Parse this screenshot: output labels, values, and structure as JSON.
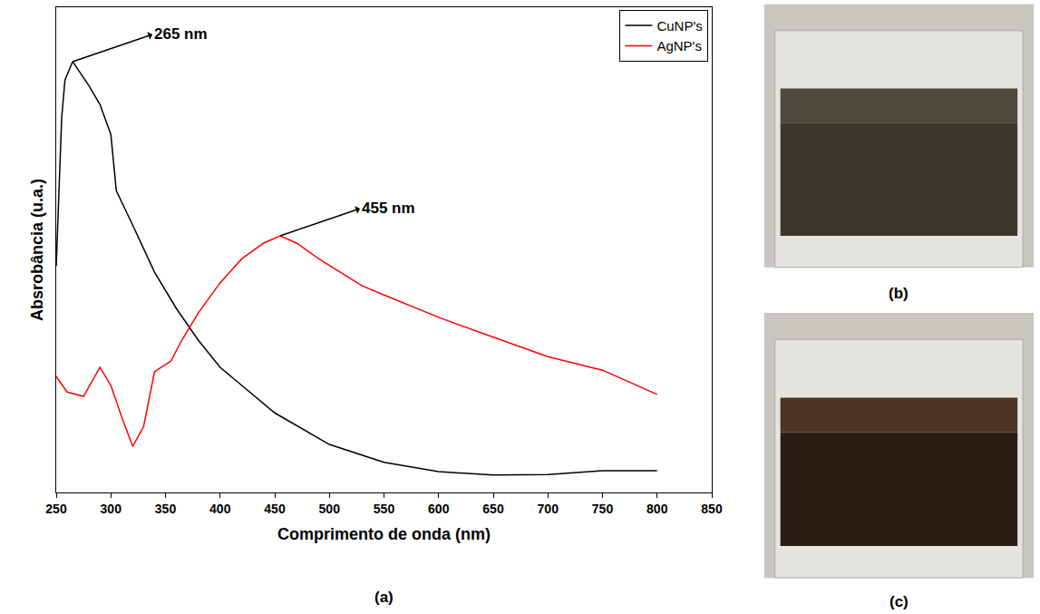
{
  "chart_data": {
    "type": "line",
    "label": "(a)",
    "x_label": "Comprimento de onda (nm)",
    "y_label": "Absrobância (u.a.)",
    "xlim": [
      250,
      850
    ],
    "xticks": [
      250,
      300,
      350,
      400,
      450,
      500,
      550,
      600,
      650,
      700,
      750,
      800,
      850
    ],
    "ylim": [
      0,
      1
    ],
    "tick_labels": "x",
    "grid": false,
    "legend": "top-right",
    "series": [
      {
        "name": "CuNP's",
        "color": "#000000",
        "x": [
          250,
          255,
          258,
          265,
          280,
          290,
          300,
          305,
          320,
          340,
          360,
          380,
          400,
          450,
          500,
          550,
          600,
          650,
          700,
          750,
          800
        ],
        "values": [
          0.467,
          0.772,
          0.85,
          0.888,
          0.838,
          0.8,
          0.738,
          0.622,
          0.551,
          0.454,
          0.379,
          0.314,
          0.258,
          0.164,
          0.099,
          0.062,
          0.043,
          0.036,
          0.037,
          0.045,
          0.045
        ]
      },
      {
        "name": "AgNP's",
        "color": "#ff0000",
        "x": [
          250,
          260,
          275,
          290,
          300,
          310,
          320,
          330,
          340,
          355,
          365,
          380,
          400,
          420,
          440,
          455,
          470,
          490,
          510,
          530,
          550,
          600,
          650,
          700,
          750,
          800
        ],
        "values": [
          0.239,
          0.207,
          0.198,
          0.258,
          0.221,
          0.155,
          0.095,
          0.136,
          0.249,
          0.271,
          0.314,
          0.37,
          0.432,
          0.482,
          0.514,
          0.529,
          0.514,
          0.482,
          0.454,
          0.426,
          0.407,
          0.361,
          0.32,
          0.28,
          0.252,
          0.202
        ]
      }
    ],
    "annotations": [
      {
        "text": "265 nm",
        "x": 265,
        "y": 0.888
      },
      {
        "text": "455 nm",
        "x": 455,
        "y": 0.529
      }
    ]
  },
  "photos": [
    {
      "label": "(b)"
    },
    {
      "label": "(c)"
    }
  ]
}
